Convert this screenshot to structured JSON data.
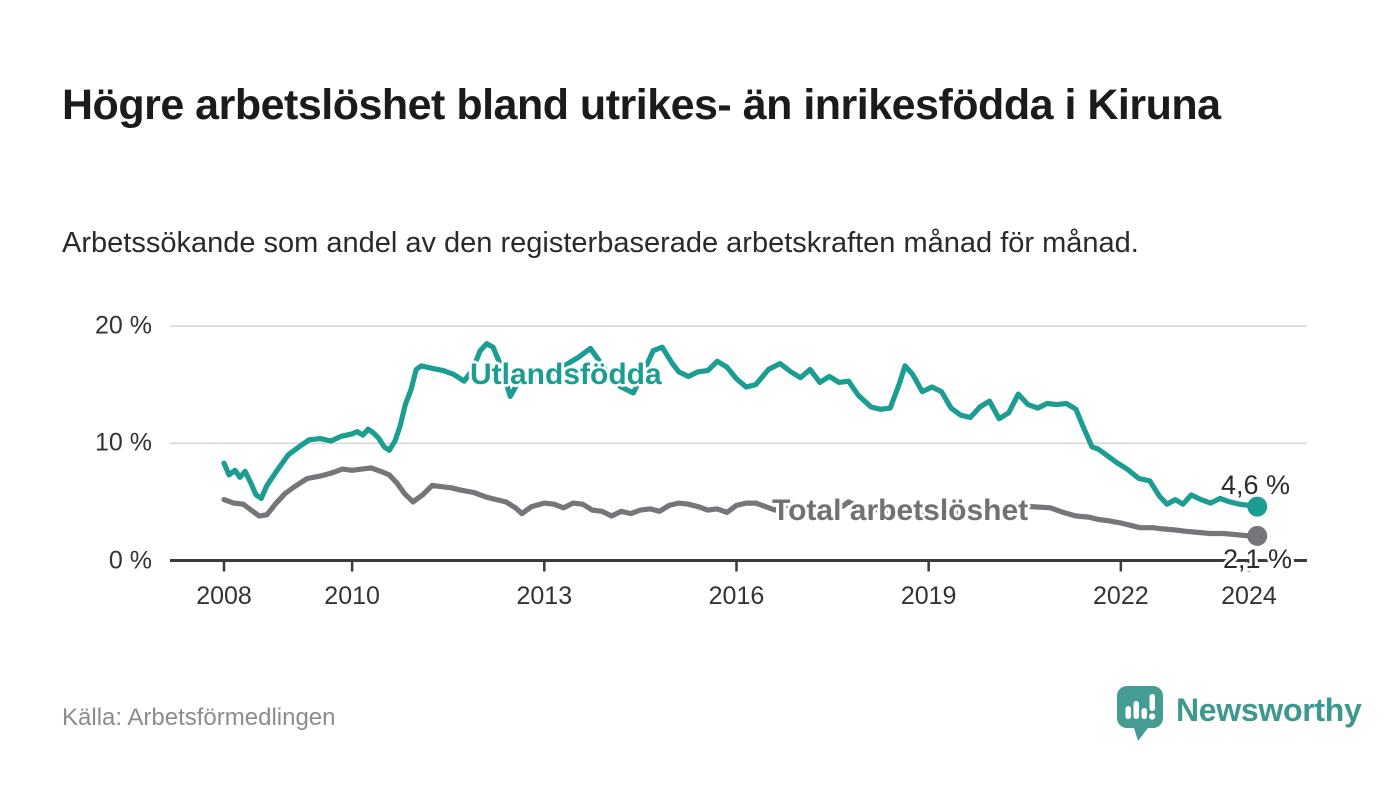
{
  "header": {
    "title": "Högre arbetslöshet bland utrikes- än inrikesfödda i Kiruna",
    "subtitle": "Arbetssökande som andel av den registerbaserade arbetskraften månad för månad."
  },
  "footer": {
    "source": "Källa: Arbetsförmedlingen",
    "brand": "Newsworthy"
  },
  "colors": {
    "teal_line": "#1b9e91",
    "gray_line": "#76767a",
    "gray_label": "#717174",
    "axis": "#3b3b3b",
    "grid": "#d8d8d8",
    "brand_teal": "#3d998f",
    "icon_teal": "#459c93"
  },
  "chart_data": {
    "type": "line",
    "title": "Högre arbetslöshet bland utrikes- än inrikesfödda i Kiruna",
    "subtitle": "Arbetssökande som andel av den registerbaserade arbetskraften månad för månad.",
    "xlabel": "",
    "ylabel": "",
    "x_unit": "year (decimal, monthly observations)",
    "y_unit": "percent of registered labour force",
    "xlim": [
      2008,
      2024.9
    ],
    "ylim": [
      0,
      20
    ],
    "grid": "horizontal-only",
    "legend_position": "inline-labels-on-lines",
    "y_ticks": [
      {
        "label": "0 %",
        "value": 0
      },
      {
        "label": "10 %",
        "value": 10
      },
      {
        "label": "20 %",
        "value": 20
      }
    ],
    "x_ticks": [
      {
        "label": "2008",
        "year": 2008
      },
      {
        "label": "2010",
        "year": 2010
      },
      {
        "label": "2013",
        "year": 2013
      },
      {
        "label": "2016",
        "year": 2016
      },
      {
        "label": "2019",
        "year": 2019
      },
      {
        "label": "2022",
        "year": 2022
      },
      {
        "label": "2024",
        "year": 2024
      }
    ],
    "series": [
      {
        "name": "Utlandsfödda",
        "color": "#1b9e91",
        "end_label": "4,6 %",
        "end_value": 4.6,
        "points": [
          [
            2008.0,
            8.3
          ],
          [
            2008.08,
            7.3
          ],
          [
            2008.17,
            7.7
          ],
          [
            2008.25,
            7.1
          ],
          [
            2008.33,
            7.6
          ],
          [
            2008.42,
            6.6
          ],
          [
            2008.5,
            5.6
          ],
          [
            2008.58,
            5.3
          ],
          [
            2008.67,
            6.4
          ],
          [
            2008.83,
            7.7
          ],
          [
            2009.0,
            9.0
          ],
          [
            2009.17,
            9.7
          ],
          [
            2009.33,
            10.3
          ],
          [
            2009.5,
            10.4
          ],
          [
            2009.67,
            10.2
          ],
          [
            2009.83,
            10.6
          ],
          [
            2010.0,
            10.8
          ],
          [
            2010.08,
            11.0
          ],
          [
            2010.17,
            10.7
          ],
          [
            2010.25,
            11.2
          ],
          [
            2010.33,
            10.9
          ],
          [
            2010.42,
            10.4
          ],
          [
            2010.5,
            9.7
          ],
          [
            2010.58,
            9.4
          ],
          [
            2010.67,
            10.2
          ],
          [
            2010.75,
            11.5
          ],
          [
            2010.83,
            13.3
          ],
          [
            2010.92,
            14.6
          ],
          [
            2011.0,
            16.3
          ],
          [
            2011.08,
            16.6
          ],
          [
            2011.25,
            16.4
          ],
          [
            2011.42,
            16.2
          ],
          [
            2011.58,
            15.9
          ],
          [
            2011.75,
            15.3
          ],
          [
            2011.88,
            16.3
          ],
          [
            2012.0,
            17.9
          ],
          [
            2012.1,
            18.5
          ],
          [
            2012.2,
            18.2
          ],
          [
            2012.33,
            16.5
          ],
          [
            2012.47,
            14.0
          ],
          [
            2012.6,
            15.3
          ],
          [
            2012.75,
            15.8
          ],
          [
            2012.9,
            15.4
          ],
          [
            2013.05,
            15.6
          ],
          [
            2013.2,
            16.2
          ],
          [
            2013.4,
            16.9
          ],
          [
            2013.55,
            17.4
          ],
          [
            2013.72,
            18.1
          ],
          [
            2013.9,
            16.7
          ],
          [
            2014.05,
            15.4
          ],
          [
            2014.2,
            14.8
          ],
          [
            2014.39,
            14.3
          ],
          [
            2014.55,
            16.1
          ],
          [
            2014.7,
            17.9
          ],
          [
            2014.84,
            18.2
          ],
          [
            2015.0,
            16.8
          ],
          [
            2015.1,
            16.1
          ],
          [
            2015.25,
            15.7
          ],
          [
            2015.4,
            16.1
          ],
          [
            2015.55,
            16.2
          ],
          [
            2015.7,
            17.0
          ],
          [
            2015.85,
            16.5
          ],
          [
            2016.0,
            15.5
          ],
          [
            2016.15,
            14.8
          ],
          [
            2016.3,
            15.0
          ],
          [
            2016.5,
            16.3
          ],
          [
            2016.68,
            16.8
          ],
          [
            2016.85,
            16.1
          ],
          [
            2017.0,
            15.6
          ],
          [
            2017.15,
            16.3
          ],
          [
            2017.3,
            15.2
          ],
          [
            2017.45,
            15.7
          ],
          [
            2017.6,
            15.2
          ],
          [
            2017.75,
            15.3
          ],
          [
            2017.9,
            14.1
          ],
          [
            2018.1,
            13.1
          ],
          [
            2018.25,
            12.9
          ],
          [
            2018.4,
            13.0
          ],
          [
            2018.55,
            15.2
          ],
          [
            2018.63,
            16.6
          ],
          [
            2018.75,
            15.9
          ],
          [
            2018.9,
            14.4
          ],
          [
            2019.05,
            14.8
          ],
          [
            2019.2,
            14.4
          ],
          [
            2019.35,
            13.0
          ],
          [
            2019.5,
            12.4
          ],
          [
            2019.65,
            12.2
          ],
          [
            2019.8,
            13.1
          ],
          [
            2019.95,
            13.6
          ],
          [
            2020.1,
            12.1
          ],
          [
            2020.25,
            12.6
          ],
          [
            2020.4,
            14.2
          ],
          [
            2020.55,
            13.3
          ],
          [
            2020.7,
            13.0
          ],
          [
            2020.85,
            13.4
          ],
          [
            2021.0,
            13.3
          ],
          [
            2021.15,
            13.4
          ],
          [
            2021.3,
            12.9
          ],
          [
            2021.42,
            11.3
          ],
          [
            2021.55,
            9.7
          ],
          [
            2021.65,
            9.5
          ],
          [
            2021.8,
            8.9
          ],
          [
            2021.95,
            8.3
          ],
          [
            2022.1,
            7.8
          ],
          [
            2022.28,
            7.0
          ],
          [
            2022.45,
            6.8
          ],
          [
            2022.6,
            5.5
          ],
          [
            2022.72,
            4.8
          ],
          [
            2022.85,
            5.2
          ],
          [
            2022.97,
            4.8
          ],
          [
            2023.1,
            5.6
          ],
          [
            2023.25,
            5.2
          ],
          [
            2023.4,
            4.9
          ],
          [
            2023.55,
            5.3
          ],
          [
            2023.7,
            5.0
          ],
          [
            2023.85,
            4.8
          ],
          [
            2024.0,
            4.7
          ],
          [
            2024.13,
            4.6
          ]
        ]
      },
      {
        "name": "Total arbetslöshet",
        "color": "#76767a",
        "end_label": "2,1 %",
        "end_value": 2.1,
        "points": [
          [
            2008.0,
            5.2
          ],
          [
            2008.15,
            4.9
          ],
          [
            2008.3,
            4.8
          ],
          [
            2008.45,
            4.2
          ],
          [
            2008.55,
            3.8
          ],
          [
            2008.67,
            3.9
          ],
          [
            2008.8,
            4.8
          ],
          [
            2008.95,
            5.7
          ],
          [
            2009.1,
            6.3
          ],
          [
            2009.3,
            7.0
          ],
          [
            2009.5,
            7.2
          ],
          [
            2009.7,
            7.5
          ],
          [
            2009.85,
            7.8
          ],
          [
            2010.0,
            7.7
          ],
          [
            2010.15,
            7.8
          ],
          [
            2010.3,
            7.9
          ],
          [
            2010.45,
            7.6
          ],
          [
            2010.58,
            7.3
          ],
          [
            2010.7,
            6.6
          ],
          [
            2010.82,
            5.7
          ],
          [
            2010.95,
            5.0
          ],
          [
            2011.1,
            5.6
          ],
          [
            2011.25,
            6.4
          ],
          [
            2011.4,
            6.3
          ],
          [
            2011.55,
            6.2
          ],
          [
            2011.7,
            6.0
          ],
          [
            2011.9,
            5.8
          ],
          [
            2012.1,
            5.4
          ],
          [
            2012.25,
            5.2
          ],
          [
            2012.4,
            5.0
          ],
          [
            2012.55,
            4.5
          ],
          [
            2012.65,
            4.0
          ],
          [
            2012.8,
            4.6
          ],
          [
            2013.0,
            4.9
          ],
          [
            2013.15,
            4.8
          ],
          [
            2013.3,
            4.5
          ],
          [
            2013.45,
            4.9
          ],
          [
            2013.6,
            4.8
          ],
          [
            2013.75,
            4.3
          ],
          [
            2013.9,
            4.2
          ],
          [
            2014.05,
            3.8
          ],
          [
            2014.2,
            4.2
          ],
          [
            2014.35,
            4.0
          ],
          [
            2014.5,
            4.3
          ],
          [
            2014.65,
            4.4
          ],
          [
            2014.8,
            4.2
          ],
          [
            2014.95,
            4.7
          ],
          [
            2015.1,
            4.9
          ],
          [
            2015.25,
            4.8
          ],
          [
            2015.4,
            4.6
          ],
          [
            2015.55,
            4.3
          ],
          [
            2015.7,
            4.4
          ],
          [
            2015.85,
            4.1
          ],
          [
            2016.0,
            4.7
          ],
          [
            2016.15,
            4.9
          ],
          [
            2016.3,
            4.9
          ],
          [
            2016.45,
            4.6
          ],
          [
            2016.6,
            4.3
          ],
          [
            2016.75,
            4.6
          ],
          [
            2016.9,
            4.8
          ],
          [
            2017.05,
            4.6
          ],
          [
            2017.2,
            4.4
          ],
          [
            2017.35,
            4.6
          ],
          [
            2017.5,
            4.4
          ],
          [
            2017.65,
            4.6
          ],
          [
            2017.75,
            5.0
          ],
          [
            2017.9,
            4.6
          ],
          [
            2018.1,
            4.4
          ],
          [
            2018.35,
            4.2
          ],
          [
            2018.6,
            4.1
          ],
          [
            2018.85,
            4.0
          ],
          [
            2019.1,
            4.1
          ],
          [
            2019.35,
            4.0
          ],
          [
            2019.6,
            4.1
          ],
          [
            2019.85,
            4.2
          ],
          [
            2020.1,
            4.4
          ],
          [
            2020.35,
            4.7
          ],
          [
            2020.6,
            4.6
          ],
          [
            2020.9,
            4.5
          ],
          [
            2021.1,
            4.1
          ],
          [
            2021.3,
            3.8
          ],
          [
            2021.5,
            3.7
          ],
          [
            2021.65,
            3.5
          ],
          [
            2021.8,
            3.4
          ],
          [
            2022.0,
            3.2
          ],
          [
            2022.15,
            3.0
          ],
          [
            2022.3,
            2.8
          ],
          [
            2022.5,
            2.8
          ],
          [
            2022.65,
            2.7
          ],
          [
            2022.85,
            2.6
          ],
          [
            2023.0,
            2.5
          ],
          [
            2023.2,
            2.4
          ],
          [
            2023.4,
            2.3
          ],
          [
            2023.6,
            2.3
          ],
          [
            2023.8,
            2.2
          ],
          [
            2024.0,
            2.1
          ],
          [
            2024.13,
            2.1
          ]
        ]
      }
    ]
  }
}
